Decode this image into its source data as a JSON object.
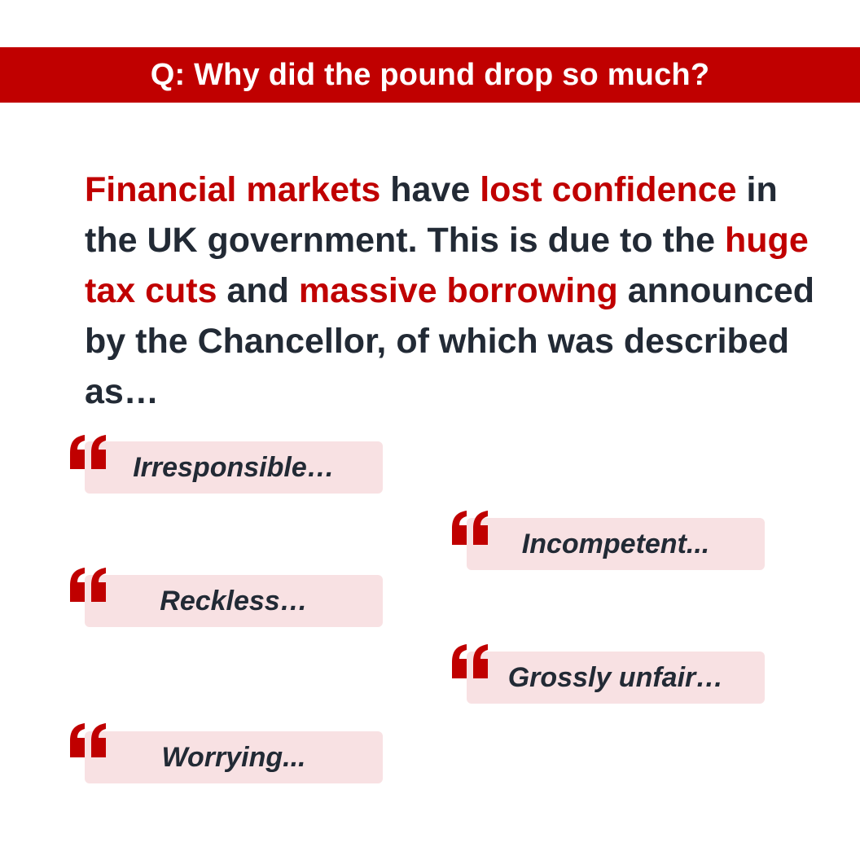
{
  "header": {
    "question": "Q: Why did the pound drop so much?"
  },
  "paragraph": {
    "seg1": "Financial markets",
    "seg2": " have ",
    "seg3": "lost confidence",
    "seg4": " in the UK government. This is due to the ",
    "seg5": "huge tax cuts",
    "seg6": " and ",
    "seg7": "massive borrowing",
    "seg8": " announced by the Chancellor, of which was described as…"
  },
  "quotes": [
    {
      "text": "Irresponsible…"
    },
    {
      "text": "Incompetent..."
    },
    {
      "text": "Reckless…"
    },
    {
      "text": "Grossly unfair…"
    },
    {
      "text": "Worrying..."
    }
  ],
  "colors": {
    "accent": "#c00000",
    "text": "#222a35",
    "quote_bg": "#f8e1e3"
  },
  "icons": {
    "quote": "left-double-quote-icon"
  }
}
